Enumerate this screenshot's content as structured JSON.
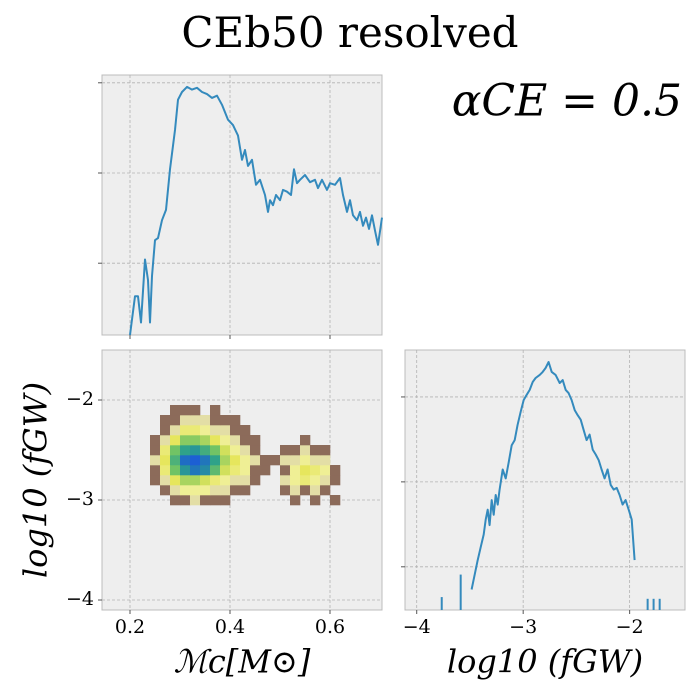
{
  "title": "CEb50 resolved",
  "annotation": "αCE = 0.5",
  "chart_data": [
    {
      "type": "line",
      "color": "#348abd",
      "yscale": "log",
      "grid": true,
      "xtick_labels": false,
      "ytick_labels": false,
      "xlim": [
        0.144,
        0.704
      ],
      "ylim": [
        0.16,
        122
      ],
      "xticks": [
        0.2,
        0.4,
        0.6
      ],
      "yticks": [
        1,
        10,
        100
      ],
      "x": [
        0.2,
        0.21,
        0.216,
        0.222,
        0.23,
        0.236,
        0.24,
        0.244,
        0.25,
        0.256,
        0.264,
        0.272,
        0.28,
        0.29,
        0.296,
        0.304,
        0.314,
        0.324,
        0.334,
        0.344,
        0.354,
        0.364,
        0.374,
        0.384,
        0.396,
        0.406,
        0.416,
        0.424,
        0.43,
        0.436,
        0.444,
        0.452,
        0.46,
        0.47,
        0.476,
        0.48,
        0.486,
        0.492,
        0.5,
        0.506,
        0.514,
        0.522,
        0.528,
        0.534,
        0.54,
        0.55,
        0.56,
        0.57,
        0.576,
        0.584,
        0.594,
        0.6,
        0.61,
        0.62,
        0.626,
        0.634,
        0.64,
        0.646,
        0.654,
        0.66,
        0.666,
        0.672,
        0.678,
        0.684,
        0.69,
        0.696,
        0.704
      ],
      "values": [
        0.16,
        0.43,
        0.43,
        0.22,
        1.1,
        0.65,
        0.22,
        0.72,
        1.8,
        1.9,
        3.0,
        3.9,
        11,
        30,
        65,
        79,
        90,
        84,
        88,
        79,
        75,
        68,
        72,
        57,
        39,
        34,
        26,
        14,
        18,
        12,
        14,
        7.4,
        8.4,
        5.7,
        3.7,
        5.0,
        4.4,
        5.7,
        5.0,
        6.5,
        6.2,
        5.7,
        11,
        7.7,
        8.4,
        9.5,
        7.9,
        8.4,
        6.8,
        8.4,
        6.5,
        7.7,
        7.4,
        8.8,
        5.7,
        3.7,
        5.0,
        3.4,
        3.0,
        3.7,
        2.6,
        3.2,
        2.4,
        3.4,
        2.3,
        1.6,
        3.2
      ]
    },
    {
      "type": "heatmap",
      "grid": true,
      "xlabel": "ℳc[M⊙]",
      "ylabel": "log10 (fGW)",
      "xlim": [
        0.144,
        0.704
      ],
      "ylim": [
        -4.1,
        -1.5
      ],
      "xticks": [
        0.2,
        0.4,
        0.6
      ],
      "yticks": [
        {
          "value": -2,
          "label": "−2"
        },
        {
          "value": -3,
          "label": "−3"
        },
        {
          "value": -4,
          "label": "−4"
        }
      ],
      "cmap": [
        "#8c6b5a",
        "#f3f3b4",
        "#e6e65a",
        "#74c464",
        "#2aa08c",
        "#1c5fd4"
      ],
      "xbins": [
        0.24,
        0.26,
        0.28,
        0.3,
        0.32,
        0.34,
        0.36,
        0.38,
        0.4,
        0.42,
        0.44,
        0.46,
        0.48,
        0.5,
        0.52,
        0.54,
        0.56,
        0.58,
        0.6,
        0.62
      ],
      "ybins": [
        -3.05,
        -2.95,
        -2.85,
        -2.75,
        -2.65,
        -2.55,
        -2.45,
        -2.35,
        -2.25,
        -2.15,
        -2.05
      ],
      "counts": [
        [
          null,
          null,
          1,
          1,
          2,
          1,
          1,
          1,
          null,
          null,
          null,
          null,
          null,
          null,
          1,
          null,
          1,
          null,
          1
        ],
        [
          null,
          1,
          2,
          3,
          3,
          3,
          2,
          2,
          1,
          1,
          null,
          null,
          null,
          1,
          2,
          1,
          2,
          1,
          null
        ],
        [
          1,
          2,
          5,
          8,
          8,
          6,
          4,
          3,
          2,
          2,
          1,
          null,
          null,
          2,
          3,
          4,
          3,
          2,
          1
        ],
        [
          1,
          4,
          12,
          30,
          45,
          35,
          15,
          6,
          4,
          3,
          1,
          1,
          null,
          1,
          3,
          5,
          4,
          3,
          1
        ],
        [
          2,
          5,
          18,
          50,
          60,
          45,
          25,
          8,
          5,
          3,
          2,
          1,
          1,
          2,
          2,
          3,
          2,
          2,
          null
        ],
        [
          1,
          4,
          12,
          25,
          30,
          20,
          12,
          6,
          3,
          2,
          1,
          null,
          null,
          1,
          1,
          2,
          1,
          1,
          null
        ],
        [
          1,
          2,
          5,
          10,
          10,
          8,
          5,
          3,
          2,
          1,
          1,
          null,
          null,
          null,
          null,
          1,
          null,
          null,
          null
        ],
        [
          null,
          1,
          2,
          4,
          4,
          3,
          2,
          2,
          1,
          1,
          null,
          null,
          null,
          null,
          null,
          null,
          null,
          null,
          null
        ],
        [
          null,
          1,
          1,
          2,
          2,
          2,
          1,
          1,
          1,
          null,
          null,
          null,
          null,
          null,
          null,
          null,
          null,
          null,
          null
        ],
        [
          null,
          null,
          1,
          1,
          1,
          null,
          1,
          null,
          null,
          null,
          null,
          null,
          null,
          null,
          null,
          null,
          null,
          null,
          null
        ]
      ]
    },
    {
      "type": "line",
      "color": "#348abd",
      "yscale": "log",
      "grid": true,
      "ytick_labels": false,
      "xlabel": "log10 (fGW)",
      "xlim": [
        -4.11,
        -1.48
      ],
      "ylim": [
        0.31,
        357
      ],
      "xticks": [
        {
          "value": -4,
          "label": "−4"
        },
        {
          "value": -3,
          "label": "−3"
        },
        {
          "value": -2,
          "label": "−2"
        }
      ],
      "yticks": [
        1,
        10,
        100
      ],
      "x": [
        -3.765,
        -3.68,
        -3.587,
        -3.53,
        -3.484,
        -3.455,
        -3.427,
        -3.399,
        -3.371,
        -3.352,
        -3.333,
        -3.315,
        -3.296,
        -3.277,
        -3.258,
        -3.239,
        -3.221,
        -3.192,
        -3.164,
        -3.136,
        -3.108,
        -3.08,
        -3.052,
        -3.023,
        -2.995,
        -2.967,
        -2.939,
        -2.911,
        -2.883,
        -2.845,
        -2.817,
        -2.789,
        -2.761,
        -2.732,
        -2.695,
        -2.657,
        -2.629,
        -2.601,
        -2.573,
        -2.545,
        -2.516,
        -2.488,
        -2.46,
        -2.432,
        -2.404,
        -2.376,
        -2.347,
        -2.319,
        -2.291,
        -2.263,
        -2.235,
        -2.207,
        -2.178,
        -2.15,
        -2.122,
        -2.094,
        -2.066,
        -2.038,
        -2.009,
        -1.981,
        -1.953,
        -1.89,
        -1.831,
        -1.8,
        -1.775,
        -1.75,
        -1.718
      ],
      "values": [
        0.44,
        null,
        0.81,
        null,
        0.54,
        0.81,
        1.2,
        1.7,
        2.4,
        3.6,
        4.7,
        3.1,
        6.1,
        4.1,
        7.0,
        5.4,
        8.1,
        14,
        11,
        17,
        27,
        31,
        47,
        67,
        92,
        106,
        121,
        150,
        167,
        182,
        197,
        219,
        258,
        197,
        182,
        146,
        158,
        121,
        111,
        92,
        70,
        61,
        54,
        41,
        31,
        36,
        24,
        21,
        18,
        14,
        11,
        14,
        9.2,
        8.1,
        8.5,
        7.0,
        5.4,
        6.1,
        4.7,
        3.6,
        1.2,
        null,
        0.42,
        null,
        0.42,
        null,
        0.42
      ]
    }
  ]
}
